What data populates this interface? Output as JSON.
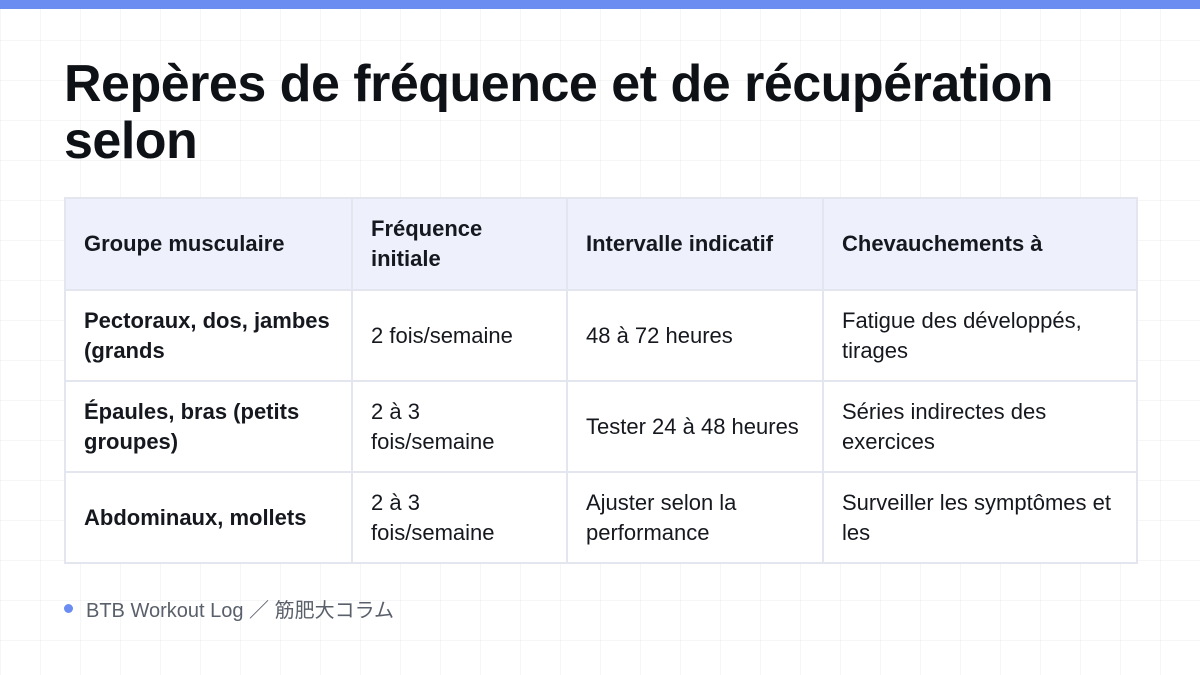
{
  "colors": {
    "accent": "#6b8cf0",
    "header_bg": "#eef1fb",
    "border": "#e3e6ef",
    "text": "#111318"
  },
  "title": "Repères de fréquence et de récupération selon",
  "table": {
    "headers": [
      "Groupe musculaire",
      "Fréquence initiale",
      "Intervalle indicatif",
      "Chevauchements à"
    ],
    "rows": [
      [
        "Pectoraux, dos, jambes (grands",
        "2 fois/semaine",
        "48 à 72 heures",
        "Fatigue des développés, tirages"
      ],
      [
        "Épaules, bras (petits groupes)",
        "2 à 3 fois/semaine",
        "Tester 24 à 48 heures",
        "Séries indirectes des exercices"
      ],
      [
        "Abdominaux, mollets",
        "2 à 3 fois/semaine",
        "Ajuster selon la performance",
        "Surveiller les symptômes et les"
      ]
    ]
  },
  "footer": {
    "text": "BTB Workout Log ／ 筋肥大コラム"
  }
}
